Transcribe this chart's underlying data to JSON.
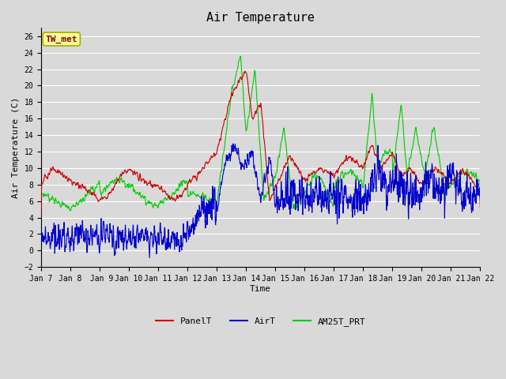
{
  "title": "Air Temperature",
  "xlabel": "Time",
  "ylabel": "Air Temperature (C)",
  "annotation": "TW_met",
  "ylim": [
    -2,
    27
  ],
  "yticks": [
    -2,
    0,
    2,
    4,
    6,
    8,
    10,
    12,
    14,
    16,
    18,
    20,
    22,
    24,
    26
  ],
  "series": {
    "PanelT": {
      "color": "#cc0000",
      "linewidth": 0.8
    },
    "AirT": {
      "color": "#0000cc",
      "linewidth": 0.8
    },
    "AM25T_PRT": {
      "color": "#00cc00",
      "linewidth": 0.8
    }
  },
  "bg_color": "#d9d9d9",
  "plot_bg_color": "#d9d9d9",
  "grid_color": "#ffffff",
  "n_points": 2160,
  "start_day": 7,
  "end_day": 22
}
